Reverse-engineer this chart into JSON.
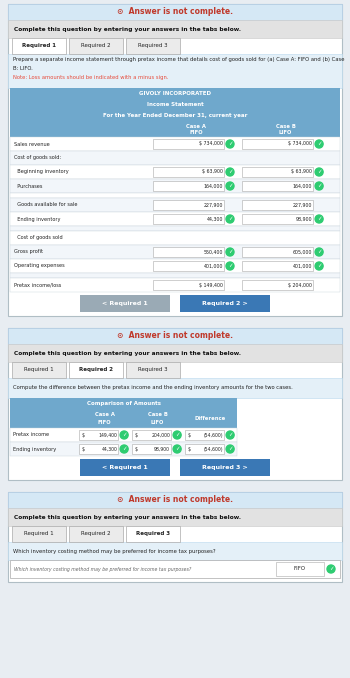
{
  "panel1": {
    "answer_banner": "Answer is not complete.",
    "complete_text": "Complete this question by entering your answers in the tabs below.",
    "tabs": [
      "Required 1",
      "Required 2",
      "Required 3"
    ],
    "active_tab": 0,
    "instruction_line1": "Prepare a separate income statement through pretax income that details cost of goods sold for (a) Case A: FIFO and (b) Case",
    "instruction_line2": "B: LIFO.",
    "instruction_note": "Note: Loss amounts should be indicated with a minus sign.",
    "company": "GIVOLY INCORPORATED",
    "statement": "Income Statement",
    "period": "For the Year Ended December 31, current year",
    "rows": [
      {
        "label": "Sales revenue",
        "fifo": "734,000",
        "lifo": "734,000",
        "indent": 0,
        "fifo_check": true,
        "lifo_check": true,
        "dollar_fifo": true,
        "dollar_lifo": true,
        "bold": false
      },
      {
        "label": "Cost of goods sold:",
        "fifo": "",
        "lifo": "",
        "indent": 0,
        "bold": false
      },
      {
        "label": "  Beginning inventory",
        "fifo": "63,900",
        "lifo": "63,900",
        "indent": 0,
        "fifo_check": true,
        "lifo_check": true,
        "dollar_fifo": true,
        "dollar_lifo": true,
        "bold": false
      },
      {
        "label": "  Purchases",
        "fifo": "164,000",
        "lifo": "164,000",
        "indent": 0,
        "fifo_check": true,
        "lifo_check": true,
        "bold": false
      },
      {
        "label": "",
        "fifo": "",
        "lifo": "",
        "indent": 0,
        "spacer": true
      },
      {
        "label": "  Goods available for sale",
        "fifo": "227,900",
        "lifo": "227,900",
        "indent": 0,
        "bold": false
      },
      {
        "label": "  Ending inventory",
        "fifo": "44,300",
        "lifo": "98,900",
        "indent": 0,
        "fifo_check": true,
        "lifo_check": true,
        "bold": false
      },
      {
        "label": "",
        "fifo": "",
        "lifo": "",
        "indent": 0,
        "spacer": true
      },
      {
        "label": "  Cost of goods sold",
        "fifo": "",
        "lifo": "",
        "indent": 0,
        "bold": false
      },
      {
        "label": "Gross profit",
        "fifo": "550,400",
        "lifo": "605,000",
        "indent": 0,
        "fifo_check": true,
        "lifo_check": true,
        "bold": false
      },
      {
        "label": "Operating expenses",
        "fifo": "401,000",
        "lifo": "401,000",
        "indent": 0,
        "fifo_check": true,
        "lifo_check": true,
        "bold": false
      },
      {
        "label": "",
        "fifo": "",
        "lifo": "",
        "indent": 0,
        "spacer": true
      },
      {
        "label": "Pretax income/loss",
        "fifo": "149,400",
        "lifo": "204,000",
        "indent": 0,
        "dollar_fifo": true,
        "dollar_lifo": true,
        "bold": false
      }
    ],
    "nav_left": "< Required 1",
    "nav_right": "Required 2 >"
  },
  "panel2": {
    "answer_banner": "Answer is not complete.",
    "complete_text": "Complete this question by entering your answers in the tabs below.",
    "tabs": [
      "Required 1",
      "Required 2",
      "Required 3"
    ],
    "active_tab": 1,
    "instruction": "Compute the difference between the pretax income and the ending inventory amounts for the two cases.",
    "table_title": "Comparison of Amounts",
    "col_headers": [
      "Case A\nFIFO",
      "Case B\nLIFO",
      "Difference"
    ],
    "rows": [
      {
        "label": "Pretax income",
        "fifo": "149,400",
        "lifo": "204,000",
        "diff": "(54,600)",
        "fifo_check": true,
        "lifo_check": true,
        "diff_check": true
      },
      {
        "label": "Ending inventory",
        "fifo": "44,300",
        "lifo": "98,900",
        "diff": "(54,600)",
        "fifo_check": true,
        "lifo_check": true,
        "diff_check": true
      }
    ],
    "nav_left": "< Required 1",
    "nav_right": "Required 3 >"
  },
  "panel3": {
    "answer_banner": "Answer is not complete.",
    "complete_text": "Complete this question by entering your answers in the tabs below.",
    "tabs": [
      "Required 1",
      "Required 2",
      "Required 3"
    ],
    "active_tab": 2,
    "question": "Which inventory costing method may be preferred for income tax purposes?",
    "field_label": "Which inventory costing method may be preferred for income tax purposes?",
    "answer": "FIFO"
  },
  "colors": {
    "outer_bg": "#e8edf2",
    "panel_bg": "#ffffff",
    "banner_bg": "#daeaf7",
    "banner_text": "#c0392b",
    "header_bar_bg": "#d8e8f0",
    "tab_active_bg": "#ffffff",
    "tab_inactive_bg": "#ebebeb",
    "tab_border": "#aaaaaa",
    "instruction_bg": "#e4f0f8",
    "table_header_bg": "#6fa8cc",
    "check_green": "#2ecc71",
    "nav_blue": "#3a78b5",
    "nav_gray": "#9aaab5",
    "row_alt": "#f2f6fa",
    "row_white": "#ffffff",
    "cell_border": "#c8d4dc"
  }
}
